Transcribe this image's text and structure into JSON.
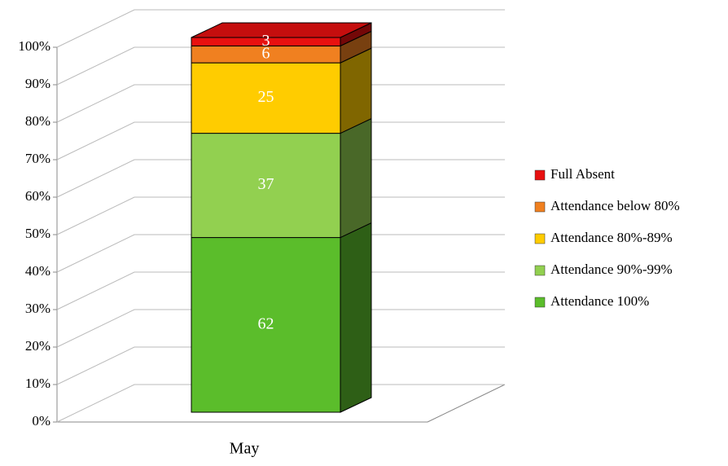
{
  "chart_data": {
    "type": "bar",
    "stacking": "percent",
    "categories": [
      "May"
    ],
    "series": [
      {
        "name": "Attendance 100%",
        "color": "#5bbd2b",
        "values": [
          62
        ]
      },
      {
        "name": "Attendance 90%-99%",
        "color": "#92d050",
        "values": [
          37
        ]
      },
      {
        "name": "Attendance 80%-89%",
        "color": "#ffcc00",
        "values": [
          25
        ]
      },
      {
        "name": "Attendance below 80%",
        "color": "#f08020",
        "values": [
          6
        ]
      },
      {
        "name": "Full Absent",
        "color": "#e81010",
        "values": [
          3
        ]
      }
    ],
    "ylim": [
      0,
      100
    ],
    "yticks": [
      {
        "value": 0,
        "label": "0%"
      },
      {
        "value": 10,
        "label": "10%"
      },
      {
        "value": 20,
        "label": "20%"
      },
      {
        "value": 30,
        "label": "30%"
      },
      {
        "value": 40,
        "label": "40%"
      },
      {
        "value": 50,
        "label": "50%"
      },
      {
        "value": 60,
        "label": "60%"
      },
      {
        "value": 70,
        "label": "70%"
      },
      {
        "value": 80,
        "label": "80%"
      },
      {
        "value": 90,
        "label": "90%"
      },
      {
        "value": 100,
        "label": "100%"
      }
    ],
    "grid": true,
    "legend": "right"
  }
}
